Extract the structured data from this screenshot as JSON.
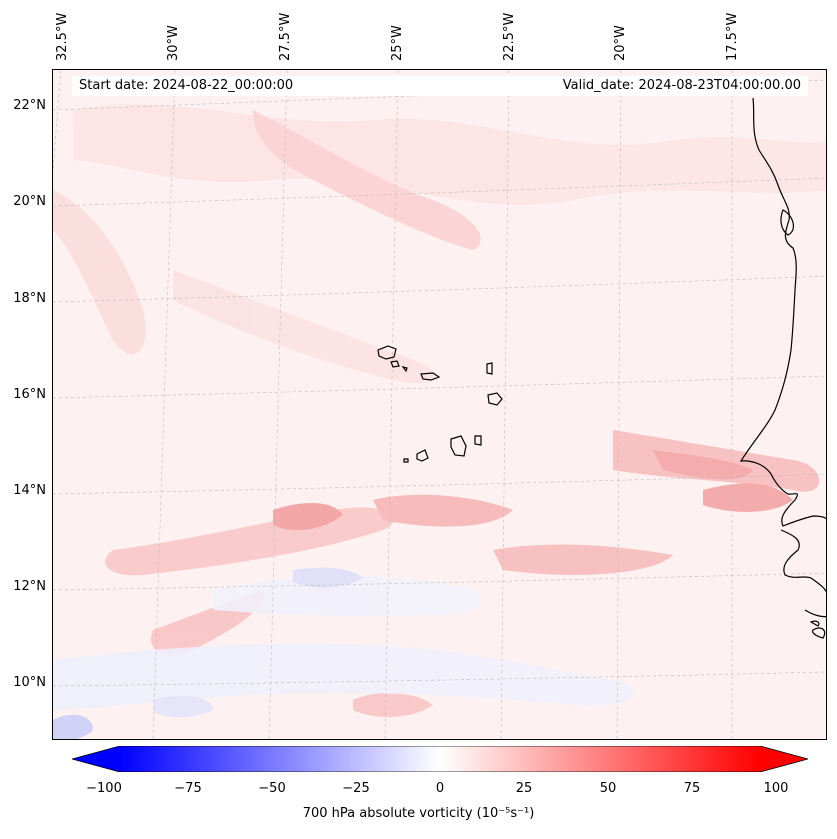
{
  "map": {
    "start_date": "Start date: 2024-08-22_00:00:00",
    "valid_date": "Valid_date: 2024-08-23T04:00:00.00",
    "longitude_labels": [
      "32.5°W",
      "30°W",
      "27.5°W",
      "25°W",
      "22.5°W",
      "20°W",
      "17.5°W"
    ],
    "latitude_labels": [
      "22°N",
      "20°N",
      "18°N",
      "16°N",
      "14°N",
      "12°N",
      "10°N"
    ],
    "field": "700 hPa absolute vorticity"
  },
  "colorbar": {
    "title": "700 hPa absolute vorticity (10⁻⁵s⁻¹)",
    "ticks": [
      "−100",
      "−75",
      "−50",
      "−25",
      "0",
      "25",
      "50",
      "75",
      "100"
    ],
    "min": -100,
    "max": 100,
    "extend": "both",
    "colormap": "bwr",
    "low_color": "#0000ff",
    "mid_color": "#ffffff",
    "high_color": "#ff0000"
  }
}
